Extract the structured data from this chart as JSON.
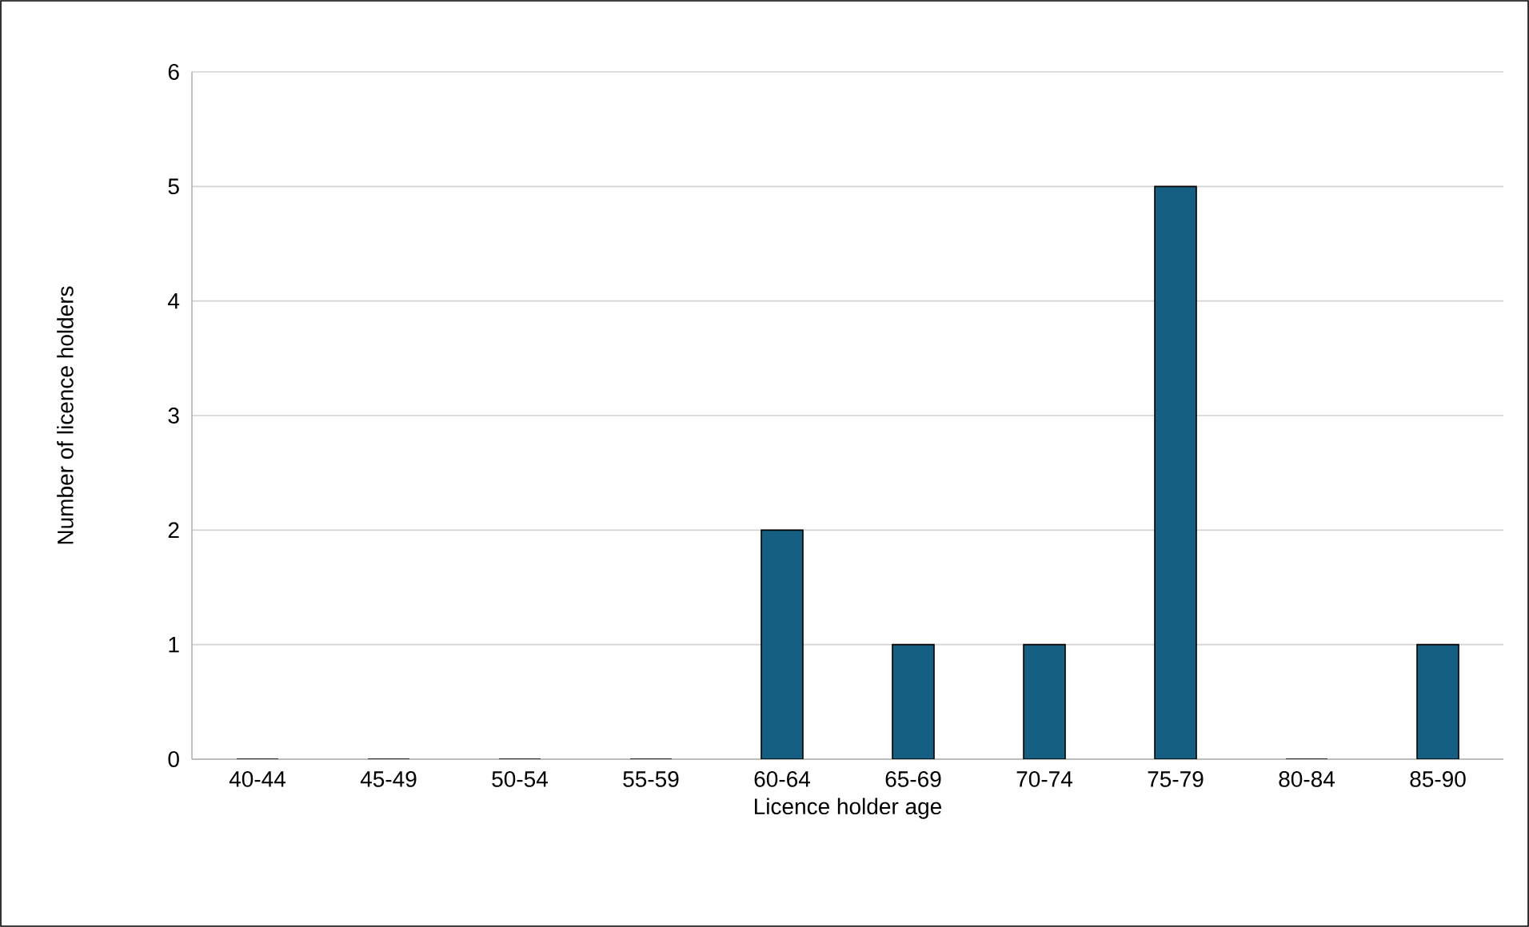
{
  "chart_data": {
    "type": "bar",
    "xlabel": "Licence holder age",
    "ylabel": "Number of licence holders",
    "categories": [
      "40-44",
      "45-49",
      "50-54",
      "55-59",
      "60-64",
      "65-69",
      "70-74",
      "75-79",
      "80-84",
      "85-90"
    ],
    "values": [
      0,
      0,
      0,
      0,
      2,
      1,
      1,
      5,
      0,
      1
    ],
    "color": "#156082",
    "ylim": [
      0,
      6
    ],
    "yticks": [
      0,
      1,
      2,
      3,
      4,
      5,
      6
    ],
    "grid": "y"
  }
}
